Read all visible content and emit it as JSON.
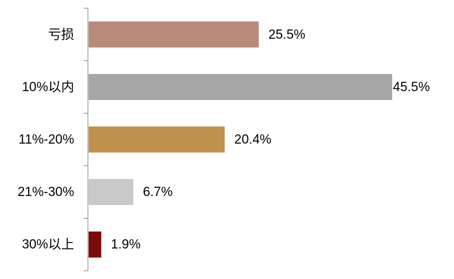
{
  "chart_data": {
    "type": "hbar",
    "categories": [
      "亏损",
      "10%以内",
      "11%-20%",
      "21%-30%",
      "30%以上"
    ],
    "values": [
      25.5,
      45.5,
      20.4,
      6.7,
      1.9
    ],
    "value_labels": [
      "25.5%",
      "45.5%",
      "20.4%",
      "6.7%",
      "1.9%"
    ],
    "colors": [
      "#b98a79",
      "#a6a6a6",
      "#c0904d",
      "#c9c9c9",
      "#7b0a0a"
    ]
  }
}
